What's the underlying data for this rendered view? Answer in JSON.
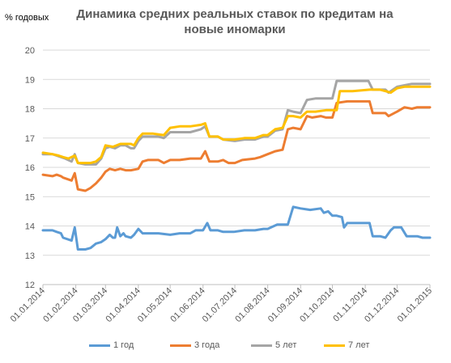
{
  "chart_data": {
    "type": "line",
    "title": "Динамика средних реальных ставок по кредитам на новые иномарки",
    "ylabel": "% годовых",
    "ylim": [
      12,
      20
    ],
    "yticks": [
      "12",
      "13",
      "14",
      "15",
      "16",
      "17",
      "18",
      "19",
      "20"
    ],
    "x_range": [
      "2014-01-01",
      "2015-01-01"
    ],
    "xticks": [
      "01.01.2014",
      "01.02.2014",
      "01.03.2014",
      "01.04.2014",
      "01.05.2014",
      "01.06.2014",
      "01.07.2014",
      "01.08.2014",
      "01.09.2014",
      "01.10.2014",
      "01.11.2014",
      "01.12.2014",
      "01.01.2015"
    ],
    "grid": true,
    "legend_position": "bottom",
    "series": [
      {
        "name": "1 год",
        "color": "#5B9BD5",
        "points": [
          [
            "2014-01-01",
            13.85
          ],
          [
            "2014-01-10",
            13.85
          ],
          [
            "2014-01-14",
            13.8
          ],
          [
            "2014-01-18",
            13.75
          ],
          [
            "2014-01-20",
            13.6
          ],
          [
            "2014-01-28",
            13.5
          ],
          [
            "2014-01-31",
            13.95
          ],
          [
            "2014-02-03",
            13.2
          ],
          [
            "2014-02-10",
            13.2
          ],
          [
            "2014-02-15",
            13.25
          ],
          [
            "2014-02-20",
            13.4
          ],
          [
            "2014-02-25",
            13.45
          ],
          [
            "2014-03-01",
            13.55
          ],
          [
            "2014-03-05",
            13.7
          ],
          [
            "2014-03-08",
            13.6
          ],
          [
            "2014-03-10",
            13.6
          ],
          [
            "2014-03-12",
            13.95
          ],
          [
            "2014-03-15",
            13.65
          ],
          [
            "2014-03-18",
            13.75
          ],
          [
            "2014-03-20",
            13.65
          ],
          [
            "2014-03-25",
            13.6
          ],
          [
            "2014-03-28",
            13.7
          ],
          [
            "2014-04-01",
            13.9
          ],
          [
            "2014-04-05",
            13.75
          ],
          [
            "2014-04-15",
            13.75
          ],
          [
            "2014-04-20",
            13.75
          ],
          [
            "2014-05-01",
            13.7
          ],
          [
            "2014-05-10",
            13.75
          ],
          [
            "2014-05-20",
            13.75
          ],
          [
            "2014-05-25",
            13.85
          ],
          [
            "2014-06-01",
            13.85
          ],
          [
            "2014-06-05",
            14.1
          ],
          [
            "2014-06-08",
            13.85
          ],
          [
            "2014-06-15",
            13.85
          ],
          [
            "2014-06-20",
            13.8
          ],
          [
            "2014-06-30",
            13.8
          ],
          [
            "2014-07-10",
            13.85
          ],
          [
            "2014-07-20",
            13.85
          ],
          [
            "2014-07-28",
            13.9
          ],
          [
            "2014-08-01",
            13.9
          ],
          [
            "2014-08-10",
            14.05
          ],
          [
            "2014-08-20",
            14.05
          ],
          [
            "2014-08-25",
            14.65
          ],
          [
            "2014-09-01",
            14.6
          ],
          [
            "2014-09-10",
            14.55
          ],
          [
            "2014-09-20",
            14.6
          ],
          [
            "2014-09-23",
            14.45
          ],
          [
            "2014-09-27",
            14.5
          ],
          [
            "2014-10-01",
            14.35
          ],
          [
            "2014-10-05",
            14.35
          ],
          [
            "2014-10-10",
            14.3
          ],
          [
            "2014-10-12",
            13.95
          ],
          [
            "2014-10-15",
            14.1
          ],
          [
            "2014-10-20",
            14.1
          ],
          [
            "2014-10-31",
            14.1
          ],
          [
            "2014-11-05",
            14.1
          ],
          [
            "2014-11-08",
            13.65
          ],
          [
            "2014-11-15",
            13.65
          ],
          [
            "2014-11-20",
            13.6
          ],
          [
            "2014-11-25",
            13.85
          ],
          [
            "2014-11-28",
            13.95
          ],
          [
            "2014-12-05",
            13.95
          ],
          [
            "2014-12-10",
            13.65
          ],
          [
            "2014-12-20",
            13.65
          ],
          [
            "2014-12-25",
            13.6
          ],
          [
            "2015-01-01",
            13.6
          ]
        ]
      },
      {
        "name": "3 года",
        "color": "#ED7D31",
        "points": [
          [
            "2014-01-01",
            15.75
          ],
          [
            "2014-01-10",
            15.7
          ],
          [
            "2014-01-14",
            15.75
          ],
          [
            "2014-01-18",
            15.7
          ],
          [
            "2014-01-20",
            15.65
          ],
          [
            "2014-01-28",
            15.55
          ],
          [
            "2014-01-31",
            15.8
          ],
          [
            "2014-02-03",
            15.25
          ],
          [
            "2014-02-10",
            15.2
          ],
          [
            "2014-02-15",
            15.3
          ],
          [
            "2014-02-20",
            15.45
          ],
          [
            "2014-02-25",
            15.65
          ],
          [
            "2014-03-01",
            15.85
          ],
          [
            "2014-03-05",
            15.95
          ],
          [
            "2014-03-10",
            15.9
          ],
          [
            "2014-03-15",
            15.95
          ],
          [
            "2014-03-20",
            15.9
          ],
          [
            "2014-03-25",
            15.9
          ],
          [
            "2014-04-01",
            15.95
          ],
          [
            "2014-04-05",
            16.2
          ],
          [
            "2014-04-10",
            16.25
          ],
          [
            "2014-04-20",
            16.25
          ],
          [
            "2014-04-25",
            16.15
          ],
          [
            "2014-05-01",
            16.25
          ],
          [
            "2014-05-10",
            16.25
          ],
          [
            "2014-05-20",
            16.3
          ],
          [
            "2014-05-30",
            16.3
          ],
          [
            "2014-06-03",
            16.55
          ],
          [
            "2014-06-07",
            16.2
          ],
          [
            "2014-06-15",
            16.2
          ],
          [
            "2014-06-20",
            16.25
          ],
          [
            "2014-06-25",
            16.15
          ],
          [
            "2014-07-01",
            16.15
          ],
          [
            "2014-07-08",
            16.25
          ],
          [
            "2014-07-20",
            16.3
          ],
          [
            "2014-07-25",
            16.35
          ],
          [
            "2014-08-01",
            16.45
          ],
          [
            "2014-08-08",
            16.55
          ],
          [
            "2014-08-15",
            16.6
          ],
          [
            "2014-08-20",
            17.3
          ],
          [
            "2014-08-25",
            17.35
          ],
          [
            "2014-09-01",
            17.3
          ],
          [
            "2014-09-07",
            17.75
          ],
          [
            "2014-09-12",
            17.7
          ],
          [
            "2014-09-20",
            17.75
          ],
          [
            "2014-09-25",
            17.7
          ],
          [
            "2014-10-01",
            17.7
          ],
          [
            "2014-10-05",
            18.2
          ],
          [
            "2014-10-15",
            18.25
          ],
          [
            "2014-10-31",
            18.25
          ],
          [
            "2014-11-05",
            18.25
          ],
          [
            "2014-11-08",
            17.85
          ],
          [
            "2014-11-20",
            17.85
          ],
          [
            "2014-11-23",
            17.75
          ],
          [
            "2014-12-01",
            17.9
          ],
          [
            "2014-12-08",
            18.05
          ],
          [
            "2014-12-15",
            18.0
          ],
          [
            "2014-12-20",
            18.05
          ],
          [
            "2015-01-01",
            18.05
          ]
        ]
      },
      {
        "name": "5 лет",
        "color": "#A5A5A5",
        "points": [
          [
            "2014-01-01",
            16.45
          ],
          [
            "2014-01-10",
            16.45
          ],
          [
            "2014-01-14",
            16.4
          ],
          [
            "2014-01-18",
            16.35
          ],
          [
            "2014-01-22",
            16.3
          ],
          [
            "2014-01-28",
            16.2
          ],
          [
            "2014-01-31",
            16.45
          ],
          [
            "2014-02-03",
            16.15
          ],
          [
            "2014-02-10",
            16.1
          ],
          [
            "2014-02-20",
            16.1
          ],
          [
            "2014-02-25",
            16.3
          ],
          [
            "2014-03-01",
            16.65
          ],
          [
            "2014-03-05",
            16.7
          ],
          [
            "2014-03-10",
            16.65
          ],
          [
            "2014-03-15",
            16.75
          ],
          [
            "2014-03-20",
            16.75
          ],
          [
            "2014-03-25",
            16.65
          ],
          [
            "2014-03-28",
            16.65
          ],
          [
            "2014-04-01",
            16.9
          ],
          [
            "2014-04-05",
            17.05
          ],
          [
            "2014-04-15",
            17.05
          ],
          [
            "2014-04-20",
            17.05
          ],
          [
            "2014-04-25",
            17.0
          ],
          [
            "2014-05-01",
            17.2
          ],
          [
            "2014-05-10",
            17.2
          ],
          [
            "2014-05-20",
            17.2
          ],
          [
            "2014-05-30",
            17.3
          ],
          [
            "2014-06-03",
            17.4
          ],
          [
            "2014-06-07",
            17.05
          ],
          [
            "2014-06-15",
            17.05
          ],
          [
            "2014-06-20",
            16.95
          ],
          [
            "2014-07-01",
            16.9
          ],
          [
            "2014-07-10",
            16.95
          ],
          [
            "2014-07-20",
            16.95
          ],
          [
            "2014-07-28",
            17.05
          ],
          [
            "2014-08-01",
            17.05
          ],
          [
            "2014-08-08",
            17.25
          ],
          [
            "2014-08-15",
            17.3
          ],
          [
            "2014-08-20",
            17.95
          ],
          [
            "2014-08-25",
            17.9
          ],
          [
            "2014-09-01",
            17.85
          ],
          [
            "2014-09-07",
            18.3
          ],
          [
            "2014-09-15",
            18.35
          ],
          [
            "2014-09-25",
            18.35
          ],
          [
            "2014-10-01",
            18.35
          ],
          [
            "2014-10-05",
            18.95
          ],
          [
            "2014-10-15",
            18.95
          ],
          [
            "2014-10-31",
            18.95
          ],
          [
            "2014-11-04",
            18.95
          ],
          [
            "2014-11-08",
            18.65
          ],
          [
            "2014-11-20",
            18.65
          ],
          [
            "2014-11-23",
            18.55
          ],
          [
            "2014-12-01",
            18.75
          ],
          [
            "2014-12-08",
            18.8
          ],
          [
            "2014-12-15",
            18.85
          ],
          [
            "2015-01-01",
            18.85
          ]
        ]
      },
      {
        "name": "7 лет",
        "color": "#FFC000",
        "points": [
          [
            "2014-01-01",
            16.5
          ],
          [
            "2014-01-10",
            16.45
          ],
          [
            "2014-01-16",
            16.4
          ],
          [
            "2014-01-20",
            16.35
          ],
          [
            "2014-01-25",
            16.3
          ],
          [
            "2014-01-31",
            16.4
          ],
          [
            "2014-02-03",
            16.15
          ],
          [
            "2014-02-15",
            16.15
          ],
          [
            "2014-02-20",
            16.2
          ],
          [
            "2014-02-25",
            16.35
          ],
          [
            "2014-03-01",
            16.75
          ],
          [
            "2014-03-08",
            16.7
          ],
          [
            "2014-03-15",
            16.8
          ],
          [
            "2014-03-25",
            16.8
          ],
          [
            "2014-03-28",
            16.75
          ],
          [
            "2014-04-01",
            17.0
          ],
          [
            "2014-04-05",
            17.15
          ],
          [
            "2014-04-15",
            17.15
          ],
          [
            "2014-04-25",
            17.1
          ],
          [
            "2014-05-01",
            17.35
          ],
          [
            "2014-05-10",
            17.4
          ],
          [
            "2014-05-20",
            17.4
          ],
          [
            "2014-05-30",
            17.45
          ],
          [
            "2014-06-03",
            17.5
          ],
          [
            "2014-06-07",
            17.05
          ],
          [
            "2014-06-15",
            17.05
          ],
          [
            "2014-06-20",
            16.95
          ],
          [
            "2014-07-01",
            16.95
          ],
          [
            "2014-07-10",
            17.0
          ],
          [
            "2014-07-20",
            17.0
          ],
          [
            "2014-07-28",
            17.1
          ],
          [
            "2014-08-01",
            17.1
          ],
          [
            "2014-08-08",
            17.3
          ],
          [
            "2014-08-15",
            17.35
          ],
          [
            "2014-08-20",
            17.75
          ],
          [
            "2014-08-25",
            17.75
          ],
          [
            "2014-09-01",
            17.7
          ],
          [
            "2014-09-07",
            17.9
          ],
          [
            "2014-09-15",
            17.9
          ],
          [
            "2014-09-25",
            17.95
          ],
          [
            "2014-10-01",
            17.95
          ],
          [
            "2014-10-05",
            17.95
          ],
          [
            "2014-10-08",
            18.6
          ],
          [
            "2014-10-20",
            18.6
          ],
          [
            "2014-11-05",
            18.65
          ],
          [
            "2014-11-15",
            18.65
          ],
          [
            "2014-11-20",
            18.6
          ],
          [
            "2014-11-25",
            18.55
          ],
          [
            "2014-12-01",
            18.7
          ],
          [
            "2014-12-08",
            18.75
          ],
          [
            "2015-01-01",
            18.75
          ]
        ]
      }
    ]
  }
}
